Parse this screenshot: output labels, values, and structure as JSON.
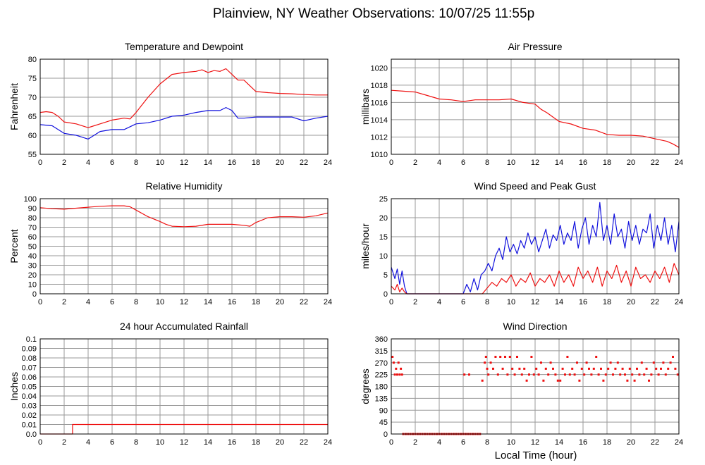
{
  "page": {
    "title": "Plainview, NY Weather Observations: 10/07/25 11:55p",
    "xlabel": "Local Time (hour)"
  },
  "colors": {
    "temperature": "#ee1111",
    "dewpoint": "#1111dd",
    "grid": "#999999"
  },
  "chart_data": [
    {
      "id": "temperature",
      "type": "line",
      "title": "Temperature and Dewpoint",
      "ylabel": "Fahrenheit",
      "xlim": [
        0,
        24
      ],
      "ylim": [
        55,
        80
      ],
      "xticks": [
        0,
        2,
        4,
        6,
        8,
        10,
        12,
        14,
        16,
        18,
        20,
        22,
        24
      ],
      "yticks": [
        55,
        60,
        65,
        70,
        75,
        80
      ],
      "grid": true,
      "series": [
        {
          "color": "#ee1111",
          "x": [
            0,
            0.5,
            1,
            1.5,
            2,
            3,
            4,
            5,
            6,
            7,
            7.5,
            8,
            8.5,
            9,
            10,
            11,
            12,
            13,
            13.5,
            14,
            14.5,
            15,
            15.5,
            16,
            16.5,
            17,
            17.5,
            18,
            19,
            20,
            21,
            22,
            23,
            24
          ],
          "y": [
            66,
            66.2,
            66,
            65,
            63.5,
            63,
            62,
            63,
            64,
            64.5,
            64.3,
            66,
            68,
            70,
            73.5,
            76,
            76.5,
            76.8,
            77.2,
            76.5,
            77,
            76.8,
            77.5,
            76,
            74.5,
            74.5,
            73,
            71.5,
            71.2,
            71,
            70.9,
            70.7,
            70.6,
            70.6
          ]
        },
        {
          "color": "#1111dd",
          "x": [
            0,
            1,
            2,
            3,
            3.5,
            4,
            4.5,
            5,
            6,
            7,
            8,
            9,
            10,
            11,
            12,
            13,
            14,
            15,
            15.5,
            16,
            16.5,
            17,
            18,
            19,
            20,
            21,
            22,
            23,
            24
          ],
          "y": [
            62.8,
            62.5,
            60.5,
            60,
            59.5,
            59,
            60,
            61,
            61.5,
            61.5,
            63,
            63.3,
            64,
            65,
            65.3,
            66,
            66.5,
            66.5,
            67.3,
            66.5,
            64.5,
            64.5,
            64.8,
            64.8,
            64.8,
            64.8,
            63.8,
            64.5,
            65
          ]
        }
      ]
    },
    {
      "id": "pressure",
      "type": "line",
      "title": "Air Pressure",
      "ylabel": "millibars",
      "xlim": [
        0,
        24
      ],
      "ylim": [
        1010,
        1021
      ],
      "xticks": [
        0,
        2,
        4,
        6,
        8,
        10,
        12,
        14,
        16,
        18,
        20,
        22,
        24
      ],
      "yticks": [
        1010,
        1012,
        1014,
        1016,
        1018,
        1020
      ],
      "grid": true,
      "series": [
        {
          "color": "#ee1111",
          "x": [
            0,
            1,
            2,
            3,
            4,
            5,
            6,
            7,
            8,
            9,
            10,
            11,
            12,
            12.5,
            13,
            14,
            15,
            16,
            17,
            18,
            19,
            20,
            21,
            22,
            23,
            23.5,
            24
          ],
          "y": [
            1017.4,
            1017.3,
            1017.2,
            1016.8,
            1016.4,
            1016.3,
            1016.1,
            1016.3,
            1016.3,
            1016.3,
            1016.4,
            1016,
            1015.8,
            1015.2,
            1014.8,
            1013.8,
            1013.5,
            1013,
            1012.8,
            1012.3,
            1012.2,
            1012.2,
            1012.1,
            1011.8,
            1011.5,
            1011.2,
            1010.8
          ]
        }
      ]
    },
    {
      "id": "humidity",
      "type": "line",
      "title": "Relative Humidity",
      "ylabel": "Percent",
      "xlim": [
        0,
        24
      ],
      "ylim": [
        0,
        100
      ],
      "xticks": [
        0,
        2,
        4,
        6,
        8,
        10,
        12,
        14,
        16,
        18,
        20,
        22,
        24
      ],
      "yticks": [
        0,
        10,
        20,
        30,
        40,
        50,
        60,
        70,
        80,
        90,
        100
      ],
      "grid": true,
      "series": [
        {
          "color": "#ee1111",
          "x": [
            0,
            1,
            2,
            3,
            4,
            5,
            6,
            7,
            7.5,
            8,
            9,
            10,
            10.5,
            11,
            12,
            13,
            14,
            15,
            16,
            17,
            17.5,
            18,
            19,
            20,
            21,
            22,
            23,
            24
          ],
          "y": [
            90.5,
            89.5,
            89,
            90,
            91,
            92,
            92.5,
            92.5,
            91.5,
            88,
            81,
            76,
            73,
            71,
            70.5,
            71,
            73,
            73,
            73,
            72,
            71,
            75,
            80,
            81,
            81,
            80.5,
            82,
            85
          ]
        }
      ]
    },
    {
      "id": "wind",
      "type": "line",
      "title": "Wind Speed and Peak Gust",
      "ylabel": "miles/hour",
      "xlim": [
        0,
        24
      ],
      "ylim": [
        0,
        25
      ],
      "xticks": [
        0,
        2,
        4,
        6,
        8,
        10,
        12,
        14,
        16,
        18,
        20,
        22,
        24
      ],
      "yticks": [
        0,
        5,
        10,
        15,
        20,
        25
      ],
      "grid": true,
      "series": [
        {
          "color": "#1111dd",
          "x": [
            0,
            0.3,
            0.5,
            0.7,
            0.9,
            1.1,
            1.3,
            6,
            6.3,
            6.6,
            6.9,
            7.2,
            7.5,
            7.8,
            8.1,
            8.4,
            8.7,
            9,
            9.3,
            9.6,
            9.9,
            10.2,
            10.5,
            10.8,
            11.1,
            11.4,
            11.7,
            12,
            12.3,
            12.6,
            12.9,
            13.2,
            13.5,
            13.8,
            14.1,
            14.4,
            14.7,
            15,
            15.3,
            15.6,
            15.9,
            16.2,
            16.5,
            16.8,
            17.1,
            17.4,
            17.7,
            18,
            18.3,
            18.6,
            18.9,
            19.2,
            19.5,
            19.8,
            20.1,
            20.4,
            20.7,
            21,
            21.3,
            21.6,
            21.9,
            22.2,
            22.5,
            22.8,
            23.1,
            23.4,
            23.7,
            24
          ],
          "y": [
            7,
            4,
            6.5,
            2.5,
            6,
            2,
            0,
            0,
            2.5,
            0.5,
            4,
            1,
            5,
            6,
            8,
            6,
            10,
            12,
            9,
            15,
            11,
            13,
            10.5,
            14,
            12,
            16,
            13,
            15,
            11,
            14,
            17,
            12,
            15.5,
            14,
            18,
            13,
            16,
            14,
            19,
            12,
            17,
            20,
            13,
            18,
            15,
            24,
            14,
            18,
            13,
            21,
            15,
            17,
            12,
            19,
            14,
            18,
            13,
            17,
            16,
            21,
            12,
            18,
            14,
            20,
            13,
            18,
            11,
            19
          ]
        },
        {
          "color": "#ee1111",
          "x": [
            0,
            0.3,
            0.5,
            0.7,
            0.9,
            1.1,
            1.3,
            7.6,
            8,
            8.4,
            8.8,
            9.2,
            9.6,
            10,
            10.4,
            10.8,
            11.2,
            11.6,
            12,
            12.4,
            12.8,
            13.2,
            13.6,
            14,
            14.4,
            14.8,
            15.2,
            15.6,
            16,
            16.4,
            16.8,
            17.2,
            17.6,
            18,
            18.4,
            18.8,
            19.2,
            19.6,
            20,
            20.4,
            20.8,
            21.2,
            21.6,
            22,
            22.4,
            22.8,
            23.2,
            23.6,
            24
          ],
          "y": [
            2,
            1,
            2.5,
            0.5,
            1.5,
            0.5,
            0,
            0,
            1.5,
            3,
            2,
            4,
            3,
            5,
            2,
            4,
            3,
            5.5,
            2,
            4,
            3,
            5,
            2,
            6,
            3,
            5,
            2,
            7,
            4,
            6,
            3,
            7,
            2,
            6,
            4,
            7.5,
            3,
            6,
            2,
            7,
            4,
            5,
            3,
            6,
            4,
            7,
            3,
            8,
            5
          ]
        }
      ]
    },
    {
      "id": "rainfall",
      "type": "line",
      "title": "24 hour Accumulated Rainfall",
      "ylabel": "Inches",
      "xlim": [
        0,
        24
      ],
      "ylim": [
        0,
        0.1
      ],
      "xticks": [
        0,
        2,
        4,
        6,
        8,
        10,
        12,
        14,
        16,
        18,
        20,
        22,
        24
      ],
      "yticks": [
        0.0,
        0.01,
        0.02,
        0.03,
        0.04,
        0.05,
        0.06,
        0.07,
        0.08,
        0.09,
        0.1
      ],
      "ytick_labels": [
        "0.0",
        "0.01",
        "0.02",
        "0.03",
        "0.04",
        "0.05",
        "0.06",
        "0.07",
        "0.08",
        "0.09",
        "0.1"
      ],
      "grid": true,
      "series": [
        {
          "color": "#ee1111",
          "x": [
            0,
            2.7,
            2.7,
            24
          ],
          "y": [
            0,
            0,
            0.01,
            0.01
          ]
        }
      ]
    },
    {
      "id": "direction",
      "type": "scatter",
      "title": "Wind Direction",
      "ylabel": "degrees",
      "xlim": [
        0,
        24
      ],
      "ylim": [
        0,
        360
      ],
      "xticks": [
        0,
        2,
        4,
        6,
        8,
        10,
        12,
        14,
        16,
        18,
        20,
        22,
        24
      ],
      "yticks": [
        0,
        45,
        90,
        135,
        180,
        225,
        270,
        315,
        360
      ],
      "grid": true,
      "series": [
        {
          "color": "#ee1111",
          "x": [
            0.1,
            0.2,
            0.3,
            0.4,
            0.5,
            0.6,
            0.7,
            0.8,
            0.9,
            1,
            1.2,
            1.4,
            1.6,
            1.8,
            2,
            2.2,
            2.4,
            2.6,
            2.8,
            3,
            3.2,
            3.4,
            3.6,
            3.8,
            4,
            4.2,
            4.4,
            4.6,
            4.8,
            5,
            5.2,
            5.4,
            5.6,
            5.8,
            6,
            6.2,
            6.4,
            6.6,
            6.8,
            7,
            7.2,
            7.4,
            6.1,
            6.5,
            7.6,
            7.8,
            7.9,
            8,
            8.1,
            8.3,
            8.5,
            8.7,
            8.9,
            9.1,
            9.3,
            9.5,
            9.7,
            9.9,
            10.1,
            10.3,
            10.5,
            10.7,
            10.9,
            11.1,
            11.3,
            11.5,
            11.7,
            11.9,
            12.1,
            12.3,
            12.5,
            12.7,
            12.9,
            13.1,
            13.3,
            13.5,
            13.7,
            13.9,
            14.1,
            14.3,
            14.5,
            14.7,
            14.9,
            15.1,
            15.3,
            15.5,
            15.7,
            15.9,
            16.1,
            16.3,
            16.5,
            16.7,
            16.9,
            17.1,
            17.3,
            17.5,
            17.7,
            17.9,
            18.1,
            18.3,
            18.5,
            18.7,
            18.9,
            19.1,
            19.3,
            19.5,
            19.7,
            19.9,
            20.1,
            20.3,
            20.5,
            20.7,
            20.9,
            21.1,
            21.3,
            21.5,
            21.7,
            21.9,
            22.1,
            22.3,
            22.5,
            22.7,
            22.9,
            23.1,
            23.3,
            23.5,
            23.7,
            23.9
          ],
          "y": [
            292,
            270,
            225,
            247,
            225,
            270,
            225,
            247,
            225,
            0,
            0,
            0,
            0,
            0,
            0,
            0,
            0,
            0,
            0,
            0,
            0,
            0,
            0,
            0,
            0,
            0,
            0,
            0,
            0,
            0,
            0,
            0,
            0,
            0,
            0,
            0,
            0,
            0,
            0,
            0,
            0,
            0,
            225,
            225,
            202,
            270,
            292,
            247,
            225,
            270,
            247,
            292,
            225,
            292,
            247,
            292,
            225,
            292,
            247,
            225,
            292,
            247,
            225,
            247,
            202,
            225,
            292,
            225,
            247,
            225,
            270,
            202,
            247,
            225,
            270,
            247,
            225,
            202,
            202,
            247,
            225,
            292,
            225,
            247,
            225,
            270,
            202,
            247,
            225,
            270,
            247,
            225,
            247,
            292,
            225,
            247,
            202,
            225,
            247,
            270,
            225,
            247,
            270,
            225,
            247,
            225,
            202,
            247,
            225,
            202,
            247,
            225,
            270,
            225,
            247,
            202,
            225,
            270,
            247,
            225,
            247,
            270,
            225,
            247,
            270,
            292,
            247,
            225
          ]
        }
      ]
    }
  ]
}
